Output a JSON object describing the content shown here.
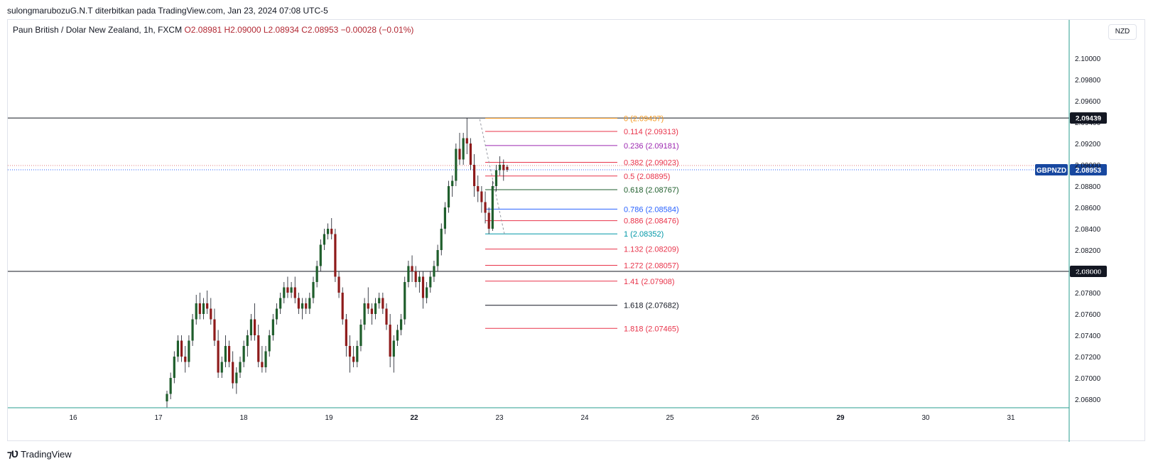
{
  "header": {
    "text": "sulongmarubozuG.N.T diterbitkan pada TradingView.com, Jan 23, 2024 07:08 UTC-5"
  },
  "legend": {
    "symbol": "Paun British / Dolar New Zealand, 1h, FXCM",
    "ohlc": "O2.08981 H2.09000 L2.08934 C2.08953 −0.00028 (−0.01%)"
  },
  "currency": "NZD",
  "branding": {
    "logo_text": "TradingView"
  },
  "colors": {
    "up": "#1f5e2c",
    "down": "#8e1b1b",
    "price_line": "#2962ff",
    "badge": "#1848a0"
  },
  "chart_data": {
    "type": "candlestick",
    "y_ticks": [
      "2.10000",
      "2.09800",
      "2.09600",
      "2.09400",
      "2.09200",
      "2.09000",
      "2.08800",
      "2.08600",
      "2.08400",
      "2.08200",
      "2.08000",
      "2.07800",
      "2.07600",
      "2.07400",
      "2.07200",
      "2.07000",
      "2.06800"
    ],
    "x_ticks": [
      {
        "label": "16",
        "bold": false
      },
      {
        "label": "17",
        "bold": false
      },
      {
        "label": "18",
        "bold": false
      },
      {
        "label": "19",
        "bold": false
      },
      {
        "label": "22",
        "bold": true
      },
      {
        "label": "23",
        "bold": false
      },
      {
        "label": "24",
        "bold": false
      },
      {
        "label": "25",
        "bold": false
      },
      {
        "label": "26",
        "bold": false
      },
      {
        "label": "29",
        "bold": true
      },
      {
        "label": "30",
        "bold": false
      },
      {
        "label": "31",
        "bold": false
      }
    ],
    "horizontal_lines": [
      {
        "value": 2.09439,
        "label": "2.09439"
      },
      {
        "value": 2.08,
        "label": "2.08000"
      }
    ],
    "last_price": {
      "value": 2.08953,
      "label": "2.08953",
      "symbol": "GBPNZD"
    },
    "fib_levels": [
      {
        "ratio": "0",
        "price": "2.09437",
        "value": 2.09437,
        "color": "#f59a23"
      },
      {
        "ratio": "0.114",
        "price": "2.09313",
        "value": 2.09313,
        "color": "#e8334a"
      },
      {
        "ratio": "0.236",
        "price": "2.09181",
        "value": 2.09181,
        "color": "#9c27b0"
      },
      {
        "ratio": "0.382",
        "price": "2.09023",
        "value": 2.09023,
        "color": "#e8334a"
      },
      {
        "ratio": "0.5",
        "price": "2.08895",
        "value": 2.08895,
        "color": "#e8334a"
      },
      {
        "ratio": "0.618",
        "price": "2.08767",
        "value": 2.08767,
        "color": "#1f5e2c"
      },
      {
        "ratio": "0.786",
        "price": "2.08584",
        "value": 2.08584,
        "color": "#2962ff"
      },
      {
        "ratio": "0.886",
        "price": "2.08476",
        "value": 2.08476,
        "color": "#e8334a"
      },
      {
        "ratio": "1",
        "price": "2.08352",
        "value": 2.08352,
        "color": "#0097a7"
      },
      {
        "ratio": "1.132",
        "price": "2.08209",
        "value": 2.08209,
        "color": "#e8334a"
      },
      {
        "ratio": "1.272",
        "price": "2.08057",
        "value": 2.08057,
        "color": "#e8334a"
      },
      {
        "ratio": "1.41",
        "price": "2.07908",
        "value": 2.07908,
        "color": "#e8334a"
      },
      {
        "ratio": "1.618",
        "price": "2.07682",
        "value": 2.07682,
        "color": "#131722"
      },
      {
        "ratio": "1.818",
        "price": "2.07465",
        "value": 2.07465,
        "color": "#e8334a"
      }
    ],
    "candles": [
      {
        "o": 2.0678,
        "h": 2.0688,
        "l": 2.0672,
        "c": 2.0685
      },
      {
        "o": 2.0685,
        "h": 2.0705,
        "l": 2.068,
        "c": 2.07
      },
      {
        "o": 2.07,
        "h": 2.0725,
        "l": 2.0695,
        "c": 2.072
      },
      {
        "o": 2.072,
        "h": 2.074,
        "l": 2.0715,
        "c": 2.0735
      },
      {
        "o": 2.0735,
        "h": 2.074,
        "l": 2.0715,
        "c": 2.072
      },
      {
        "o": 2.072,
        "h": 2.073,
        "l": 2.0705,
        "c": 2.0715
      },
      {
        "o": 2.0715,
        "h": 2.074,
        "l": 2.071,
        "c": 2.0735
      },
      {
        "o": 2.0735,
        "h": 2.076,
        "l": 2.073,
        "c": 2.0755
      },
      {
        "o": 2.0755,
        "h": 2.0778,
        "l": 2.075,
        "c": 2.077
      },
      {
        "o": 2.077,
        "h": 2.078,
        "l": 2.0755,
        "c": 2.076
      },
      {
        "o": 2.076,
        "h": 2.0775,
        "l": 2.0755,
        "c": 2.077
      },
      {
        "o": 2.077,
        "h": 2.0782,
        "l": 2.076,
        "c": 2.0765
      },
      {
        "o": 2.0765,
        "h": 2.0775,
        "l": 2.075,
        "c": 2.0755
      },
      {
        "o": 2.0755,
        "h": 2.0765,
        "l": 2.073,
        "c": 2.0735
      },
      {
        "o": 2.0735,
        "h": 2.0745,
        "l": 2.07,
        "c": 2.0705
      },
      {
        "o": 2.0705,
        "h": 2.072,
        "l": 2.07,
        "c": 2.0715
      },
      {
        "o": 2.0715,
        "h": 2.074,
        "l": 2.071,
        "c": 2.073
      },
      {
        "o": 2.073,
        "h": 2.0735,
        "l": 2.071,
        "c": 2.0715
      },
      {
        "o": 2.0715,
        "h": 2.0725,
        "l": 2.069,
        "c": 2.0695
      },
      {
        "o": 2.0695,
        "h": 2.071,
        "l": 2.0685,
        "c": 2.0705
      },
      {
        "o": 2.0705,
        "h": 2.072,
        "l": 2.07,
        "c": 2.0715
      },
      {
        "o": 2.0715,
        "h": 2.0735,
        "l": 2.071,
        "c": 2.073
      },
      {
        "o": 2.073,
        "h": 2.0745,
        "l": 2.072,
        "c": 2.074
      },
      {
        "o": 2.074,
        "h": 2.076,
        "l": 2.0735,
        "c": 2.0755
      },
      {
        "o": 2.0755,
        "h": 2.077,
        "l": 2.0735,
        "c": 2.074
      },
      {
        "o": 2.074,
        "h": 2.075,
        "l": 2.071,
        "c": 2.0715
      },
      {
        "o": 2.0715,
        "h": 2.073,
        "l": 2.0705,
        "c": 2.071
      },
      {
        "o": 2.071,
        "h": 2.073,
        "l": 2.0705,
        "c": 2.0725
      },
      {
        "o": 2.0725,
        "h": 2.0745,
        "l": 2.072,
        "c": 2.074
      },
      {
        "o": 2.074,
        "h": 2.076,
        "l": 2.0735,
        "c": 2.0755
      },
      {
        "o": 2.0755,
        "h": 2.077,
        "l": 2.075,
        "c": 2.0765
      },
      {
        "o": 2.0765,
        "h": 2.078,
        "l": 2.076,
        "c": 2.0775
      },
      {
        "o": 2.0775,
        "h": 2.079,
        "l": 2.077,
        "c": 2.0785
      },
      {
        "o": 2.0785,
        "h": 2.0795,
        "l": 2.0775,
        "c": 2.078
      },
      {
        "o": 2.078,
        "h": 2.079,
        "l": 2.0775,
        "c": 2.0785
      },
      {
        "o": 2.0785,
        "h": 2.0795,
        "l": 2.077,
        "c": 2.0775
      },
      {
        "o": 2.0775,
        "h": 2.078,
        "l": 2.076,
        "c": 2.0765
      },
      {
        "o": 2.0765,
        "h": 2.0775,
        "l": 2.0755,
        "c": 2.077
      },
      {
        "o": 2.077,
        "h": 2.0775,
        "l": 2.076,
        "c": 2.0765
      },
      {
        "o": 2.0765,
        "h": 2.078,
        "l": 2.076,
        "c": 2.0775
      },
      {
        "o": 2.0775,
        "h": 2.0795,
        "l": 2.077,
        "c": 2.079
      },
      {
        "o": 2.079,
        "h": 2.081,
        "l": 2.0785,
        "c": 2.0805
      },
      {
        "o": 2.0805,
        "h": 2.083,
        "l": 2.08,
        "c": 2.0825
      },
      {
        "o": 2.0825,
        "h": 2.084,
        "l": 2.082,
        "c": 2.0835
      },
      {
        "o": 2.0835,
        "h": 2.0845,
        "l": 2.083,
        "c": 2.084
      },
      {
        "o": 2.084,
        "h": 2.085,
        "l": 2.083,
        "c": 2.0835
      },
      {
        "o": 2.0835,
        "h": 2.084,
        "l": 2.079,
        "c": 2.0795
      },
      {
        "o": 2.0795,
        "h": 2.08,
        "l": 2.0775,
        "c": 2.078
      },
      {
        "o": 2.078,
        "h": 2.0785,
        "l": 2.075,
        "c": 2.0755
      },
      {
        "o": 2.0755,
        "h": 2.076,
        "l": 2.072,
        "c": 2.073
      },
      {
        "o": 2.073,
        "h": 2.074,
        "l": 2.0705,
        "c": 2.072
      },
      {
        "o": 2.072,
        "h": 2.073,
        "l": 2.071,
        "c": 2.0715
      },
      {
        "o": 2.0715,
        "h": 2.0735,
        "l": 2.071,
        "c": 2.073
      },
      {
        "o": 2.073,
        "h": 2.0755,
        "l": 2.0725,
        "c": 2.075
      },
      {
        "o": 2.075,
        "h": 2.0775,
        "l": 2.0745,
        "c": 2.077
      },
      {
        "o": 2.077,
        "h": 2.0785,
        "l": 2.076,
        "c": 2.0765
      },
      {
        "o": 2.0765,
        "h": 2.077,
        "l": 2.075,
        "c": 2.076
      },
      {
        "o": 2.076,
        "h": 2.0775,
        "l": 2.0755,
        "c": 2.077
      },
      {
        "o": 2.077,
        "h": 2.078,
        "l": 2.0765,
        "c": 2.0775
      },
      {
        "o": 2.0775,
        "h": 2.078,
        "l": 2.076,
        "c": 2.0765
      },
      {
        "o": 2.0765,
        "h": 2.077,
        "l": 2.0745,
        "c": 2.075
      },
      {
        "o": 2.075,
        "h": 2.076,
        "l": 2.071,
        "c": 2.072
      },
      {
        "o": 2.072,
        "h": 2.074,
        "l": 2.0705,
        "c": 2.0735
      },
      {
        "o": 2.0735,
        "h": 2.075,
        "l": 2.073,
        "c": 2.0745
      },
      {
        "o": 2.0745,
        "h": 2.076,
        "l": 2.074,
        "c": 2.0755
      },
      {
        "o": 2.0755,
        "h": 2.0795,
        "l": 2.075,
        "c": 2.079
      },
      {
        "o": 2.079,
        "h": 2.081,
        "l": 2.0785,
        "c": 2.0805
      },
      {
        "o": 2.0805,
        "h": 2.0815,
        "l": 2.079,
        "c": 2.08
      },
      {
        "o": 2.08,
        "h": 2.0805,
        "l": 2.0785,
        "c": 2.079
      },
      {
        "o": 2.079,
        "h": 2.08,
        "l": 2.078,
        "c": 2.0795
      },
      {
        "o": 2.0795,
        "h": 2.08,
        "l": 2.0765,
        "c": 2.0775
      },
      {
        "o": 2.0775,
        "h": 2.079,
        "l": 2.077,
        "c": 2.0785
      },
      {
        "o": 2.0785,
        "h": 2.08,
        "l": 2.078,
        "c": 2.0795
      },
      {
        "o": 2.0795,
        "h": 2.081,
        "l": 2.079,
        "c": 2.0805
      },
      {
        "o": 2.0805,
        "h": 2.0825,
        "l": 2.08,
        "c": 2.082
      },
      {
        "o": 2.082,
        "h": 2.0845,
        "l": 2.0815,
        "c": 2.084
      },
      {
        "o": 2.084,
        "h": 2.0865,
        "l": 2.0835,
        "c": 2.086
      },
      {
        "o": 2.086,
        "h": 2.0885,
        "l": 2.0855,
        "c": 2.088
      },
      {
        "o": 2.088,
        "h": 2.089,
        "l": 2.087,
        "c": 2.0885
      },
      {
        "o": 2.0885,
        "h": 2.092,
        "l": 2.088,
        "c": 2.0915
      },
      {
        "o": 2.0915,
        "h": 2.093,
        "l": 2.09,
        "c": 2.0905
      },
      {
        "o": 2.0905,
        "h": 2.093,
        "l": 2.09,
        "c": 2.0925
      },
      {
        "o": 2.0925,
        "h": 2.09439,
        "l": 2.091,
        "c": 2.092
      },
      {
        "o": 2.092,
        "h": 2.0925,
        "l": 2.0895,
        "c": 2.09
      },
      {
        "o": 2.09,
        "h": 2.091,
        "l": 2.087,
        "c": 2.088
      },
      {
        "o": 2.088,
        "h": 2.089,
        "l": 2.0865,
        "c": 2.0875
      },
      {
        "o": 2.0875,
        "h": 2.088,
        "l": 2.0855,
        "c": 2.0865
      },
      {
        "o": 2.0865,
        "h": 2.0875,
        "l": 2.0845,
        "c": 2.0855
      },
      {
        "o": 2.0855,
        "h": 2.086,
        "l": 2.08352,
        "c": 2.084
      },
      {
        "o": 2.084,
        "h": 2.0885,
        "l": 2.0838,
        "c": 2.088
      },
      {
        "o": 2.088,
        "h": 2.09,
        "l": 2.0875,
        "c": 2.0895
      },
      {
        "o": 2.0895,
        "h": 2.0908,
        "l": 2.089,
        "c": 2.09
      },
      {
        "o": 2.09,
        "h": 2.0905,
        "l": 2.0885,
        "c": 2.0895
      },
      {
        "o": 2.08981,
        "h": 2.09,
        "l": 2.08934,
        "c": 2.08953
      }
    ]
  }
}
